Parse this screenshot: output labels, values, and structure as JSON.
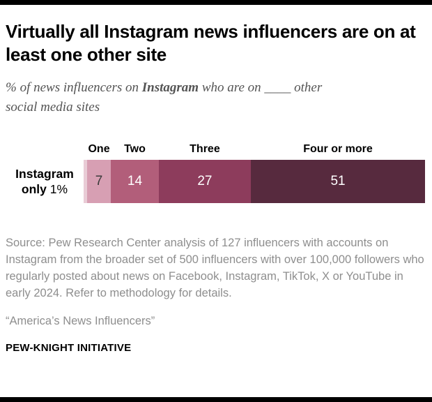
{
  "header": {
    "title": "Virtually all Instagram news influencers are on at least one other site",
    "subtitle_prefix": "% of news influencers on ",
    "subtitle_bold": "Instagram",
    "subtitle_suffix": " who are on ____ other social media sites"
  },
  "chart_data": {
    "type": "bar",
    "variant": "horizontal_stacked_100pct",
    "unit": "%",
    "title": "Virtually all Instagram news influencers are on at least one other site",
    "row_label": {
      "bold1": "Instagram",
      "bold2": "only",
      "value": "1%"
    },
    "categories": [
      "Instagram only",
      "One",
      "Two",
      "Three",
      "Four or more"
    ],
    "values": [
      1,
      7,
      14,
      27,
      51
    ],
    "colors": [
      "#e9ccd6",
      "#d79fb3",
      "#b25e7a",
      "#8d3c5c",
      "#572a3e"
    ],
    "value_text_colors": [
      "",
      "#3a3a3a",
      "#ffffff",
      "#ffffff",
      "#ffffff"
    ],
    "header_labels": [
      "One",
      "Two",
      "Three",
      "Four or more"
    ],
    "xlim": [
      0,
      100
    ],
    "legend": "none",
    "grid": false
  },
  "footer": {
    "source_note": "Source: Pew Research Center analysis of 127 influencers with accounts on Instagram from the broader set of 500 influencers with over 100,000 followers who regularly posted about news on Facebook, Instagram, TikTok, X or YouTube in early 2024. Refer to methodology for details.",
    "attribution": "“America’s News Influencers”",
    "brand": "PEW-KNIGHT INITIATIVE"
  }
}
